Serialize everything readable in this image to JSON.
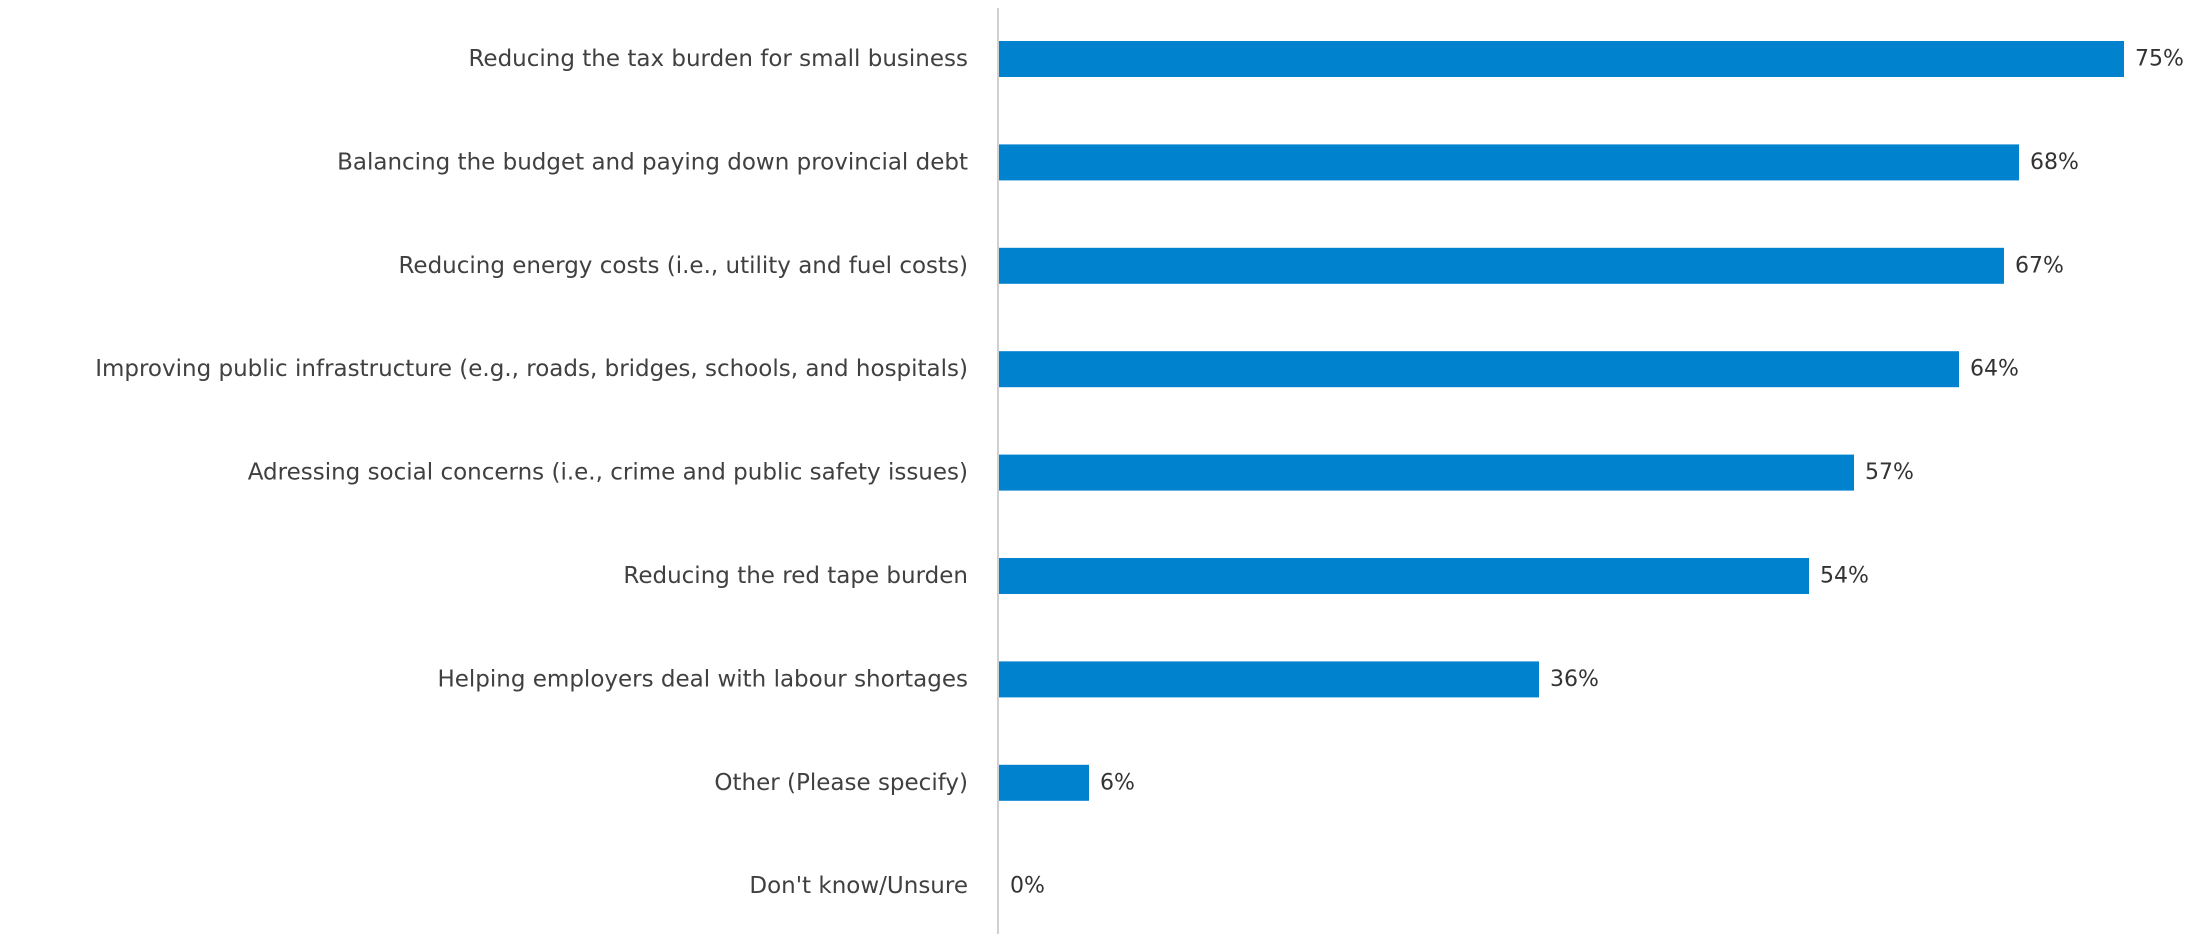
{
  "chart_data": {
    "type": "bar",
    "orientation": "horizontal",
    "categories": [
      "Reducing the tax burden for small business",
      "Balancing the budget and paying down provincial debt",
      "Reducing energy costs (i.e., utility and fuel costs)",
      "Improving public infrastructure (e.g., roads, bridges, schools, and hospitals)",
      "Adressing social concerns (i.e., crime and public safety issues)",
      "Reducing the red tape burden",
      "Helping employers deal with labour shortages",
      "Other (Please specify)",
      "Don't know/Unsure"
    ],
    "values": [
      75,
      68,
      67,
      64,
      57,
      54,
      36,
      6,
      0
    ],
    "value_labels": [
      "75%",
      "68%",
      "67%",
      "64%",
      "57%",
      "54%",
      "36%",
      "6%",
      "0%"
    ],
    "unit": "%",
    "title": "",
    "xlabel": "",
    "ylabel": "",
    "xlim": [
      0,
      80
    ],
    "grid": false,
    "legend": "none",
    "colors": {
      "bar": "#0082CE",
      "axis": "#D0D0D0",
      "label_text": "#404040",
      "value_text": "#333333"
    }
  }
}
